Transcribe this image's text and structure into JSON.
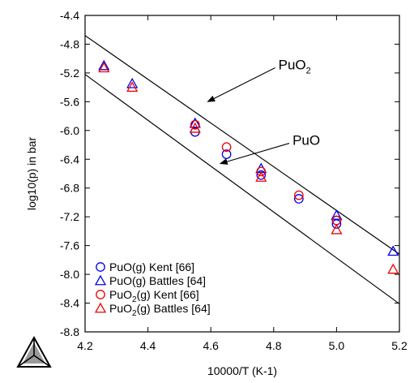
{
  "chart_data": {
    "type": "scatter",
    "title": "",
    "xlabel": "10000/T (K-1)",
    "ylabel": "log10(p) in bar",
    "xlim": [
      4.2,
      5.2
    ],
    "ylim": [
      -8.8,
      -4.4
    ],
    "xticks": [
      "4.2",
      "4.4",
      "4.6",
      "4.8",
      "5.0",
      "5.2"
    ],
    "yticks": [
      "-4.4",
      "-4.8",
      "-5.2",
      "-5.6",
      "-6.0",
      "-6.4",
      "-6.8",
      "-7.2",
      "-7.6",
      "-8.0",
      "-8.4",
      "-8.8"
    ],
    "grid": false,
    "legend_position": "bottom-left",
    "lines": [
      {
        "name": "PuO₂",
        "x": [
          4.2,
          5.2
        ],
        "y": [
          -4.68,
          -7.72
        ]
      },
      {
        "name": "PuO",
        "x": [
          4.2,
          5.2
        ],
        "y": [
          -5.22,
          -8.41
        ]
      }
    ],
    "annotations": [
      {
        "text": "PuO",
        "sub": "2",
        "label_at": [
          4.815,
          -5.15
        ],
        "arrow_to": [
          4.59,
          -5.6
        ]
      },
      {
        "text": "PuO",
        "sub": "",
        "label_at": [
          4.86,
          -6.2
        ],
        "arrow_to": [
          4.63,
          -6.46
        ]
      }
    ],
    "series": [
      {
        "name": "PuO(g) Kent [66]",
        "legend_main": "PuO(g) Kent [66]",
        "legend_sub": "",
        "legend_after": "",
        "marker": "circle",
        "color": "#0000ee",
        "x": [
          4.55,
          4.55,
          4.65,
          4.76,
          4.88,
          5.0,
          5.0
        ],
        "y": [
          -5.92,
          -6.02,
          -6.33,
          -6.62,
          -6.95,
          -7.25,
          -7.3
        ]
      },
      {
        "name": "PuO(g) Battles [64]",
        "legend_main": "PuO(g) Battles [64]",
        "legend_sub": "",
        "legend_after": "",
        "marker": "triangle",
        "color": "#0000ee",
        "x": [
          4.26,
          4.35,
          4.55,
          4.76,
          5.0,
          5.18
        ],
        "y": [
          -5.1,
          -5.35,
          -5.9,
          -6.53,
          -7.18,
          -7.68
        ]
      },
      {
        "name": "PuO2(g) Kent [66]",
        "legend_main": "PuO",
        "legend_sub": "2",
        "legend_after": "(g) Kent [66]",
        "marker": "circle",
        "color": "#ee0000",
        "x": [
          4.55,
          4.65,
          4.76,
          4.88,
          5.0
        ],
        "y": [
          -5.92,
          -6.23,
          -6.57,
          -6.9,
          -7.25
        ]
      },
      {
        "name": "PuO2(g) Battles [64]",
        "legend_main": "PuO",
        "legend_sub": "2",
        "legend_after": "(g) Battles [64]",
        "marker": "triangle",
        "color": "#ee0000",
        "x": [
          4.26,
          4.35,
          4.55,
          4.76,
          5.0,
          5.18
        ],
        "y": [
          -5.13,
          -5.4,
          -5.97,
          -6.65,
          -7.38,
          -7.93
        ]
      }
    ]
  },
  "logo": {
    "name": "thermo-calc-logo"
  }
}
